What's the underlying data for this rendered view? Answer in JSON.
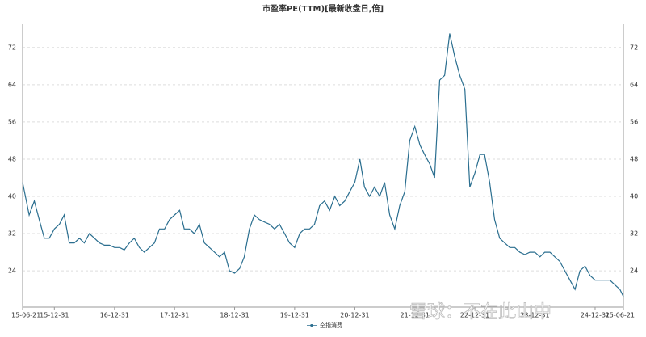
{
  "chart_data": {
    "type": "line",
    "title": "市盈率PE(TTM)[最新收盘日,倍]",
    "watermark": "雪球：不在此山中",
    "x": [
      "15-06-21",
      "15-07-31",
      "15-08-31",
      "15-09-30",
      "15-10-31",
      "15-11-30",
      "15-12-31",
      "16-01-31",
      "16-02-29",
      "16-03-31",
      "16-04-30",
      "16-05-31",
      "16-06-30",
      "16-07-31",
      "16-08-31",
      "16-09-30",
      "16-10-31",
      "16-11-30",
      "16-12-31",
      "17-01-31",
      "17-02-28",
      "17-03-31",
      "17-04-30",
      "17-05-31",
      "17-06-30",
      "17-07-31",
      "17-08-31",
      "17-09-30",
      "17-10-31",
      "17-11-30",
      "17-12-31",
      "18-01-31",
      "18-02-28",
      "18-03-31",
      "18-04-30",
      "18-05-31",
      "18-06-30",
      "18-07-31",
      "18-08-31",
      "18-09-30",
      "18-10-31",
      "18-11-30",
      "18-12-31",
      "19-01-31",
      "19-02-28",
      "19-03-31",
      "19-04-30",
      "19-05-31",
      "19-06-30",
      "19-07-31",
      "19-08-31",
      "19-09-30",
      "19-10-31",
      "19-11-30",
      "19-12-31",
      "20-01-31",
      "20-02-29",
      "20-03-31",
      "20-04-30",
      "20-05-31",
      "20-06-30",
      "20-07-31",
      "20-08-31",
      "20-09-30",
      "20-10-31",
      "20-11-30",
      "20-12-31",
      "21-01-31",
      "21-02-28",
      "21-03-31",
      "21-04-30",
      "21-05-31",
      "21-06-30",
      "21-07-31",
      "21-08-31",
      "21-09-30",
      "21-10-31",
      "21-11-30",
      "21-12-31",
      "22-01-31",
      "22-02-28",
      "22-03-31",
      "22-04-30",
      "22-05-31",
      "22-06-30",
      "22-07-31",
      "22-08-31",
      "22-09-30",
      "22-10-31",
      "22-11-30",
      "22-12-31",
      "23-01-31",
      "23-02-28",
      "23-03-31",
      "23-04-30",
      "23-05-31",
      "23-06-30",
      "23-07-31",
      "23-08-31",
      "23-09-30",
      "23-10-31",
      "23-11-30",
      "23-12-31",
      "24-01-31",
      "24-02-29",
      "24-03-31",
      "24-04-30",
      "24-05-31",
      "24-06-30",
      "24-07-31",
      "24-08-31",
      "24-09-30",
      "24-10-31",
      "24-11-30",
      "24-12-31",
      "25-01-31",
      "25-02-28",
      "25-03-31",
      "25-04-30",
      "25-05-31",
      "25-06-21"
    ],
    "series": [
      {
        "name": "全指消费",
        "color": "#2a6e8f",
        "values": [
          43,
          36,
          39,
          35,
          31,
          31,
          33,
          34,
          36,
          30,
          30,
          31,
          30,
          32,
          31,
          30,
          29.5,
          29.5,
          29,
          29,
          28.5,
          30,
          31,
          29,
          28,
          29,
          30,
          33,
          33,
          35,
          36,
          37,
          33,
          33,
          32,
          34,
          30,
          29,
          28,
          27,
          28,
          24,
          23.5,
          24.5,
          27,
          33,
          36,
          35,
          34.5,
          34,
          33,
          34,
          32,
          30,
          29,
          32,
          33,
          33,
          34,
          38,
          39,
          37,
          40,
          38,
          39,
          41,
          43,
          48,
          42,
          40,
          42,
          40,
          43,
          36,
          33,
          38,
          41,
          52,
          55,
          51,
          49,
          47,
          44,
          65,
          66,
          75,
          70,
          66,
          63,
          42,
          45,
          49,
          49,
          43,
          35,
          31,
          30,
          29,
          29,
          28,
          27.5,
          28,
          28,
          27,
          28,
          28,
          27,
          26,
          24,
          22,
          20,
          24,
          25,
          23,
          22,
          22,
          22,
          22,
          21,
          20,
          18.5
        ]
      }
    ],
    "xlim": [
      "15-06-21",
      "25-06-21"
    ],
    "xticks": [
      "15-06-21",
      "15-12-31",
      "16-12-31",
      "17-12-31",
      "18-12-31",
      "19-12-31",
      "20-12-31",
      "21-12-31",
      "22-12-31",
      "23-12-31",
      "24-12-31",
      "25-06-21"
    ],
    "ylim": [
      16.2,
      77
    ],
    "yticks": [
      24,
      32,
      40,
      48,
      56,
      64,
      72
    ],
    "grid": true
  }
}
